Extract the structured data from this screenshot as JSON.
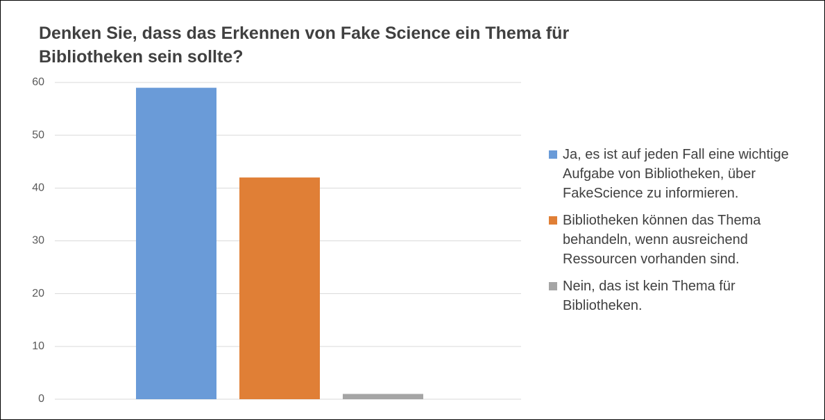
{
  "chart_data": {
    "type": "bar",
    "title": "Denken Sie, dass das Erkennen von Fake Science ein Thema für Bibliotheken sein sollte?",
    "categories": [
      null
    ],
    "series": [
      {
        "name": "Ja, es ist auf jeden Fall eine wichtige Aufgabe von Bibliotheken, über FakeScience zu informieren.",
        "color": "#6a9bd8",
        "values": [
          59
        ]
      },
      {
        "name": "Bibliotheken können das Thema behandeln, wenn ausreichend Ressourcen vorhanden sind.",
        "color": "#e07f36",
        "values": [
          42
        ]
      },
      {
        "name": "Nein, das ist kein Thema für Bibliotheken.",
        "color": "#a5a5a5",
        "values": [
          1
        ]
      }
    ],
    "ylim": [
      0,
      60
    ],
    "yticks": [
      0,
      10,
      20,
      30,
      40,
      50,
      60
    ],
    "grid": true,
    "legend": "right"
  }
}
